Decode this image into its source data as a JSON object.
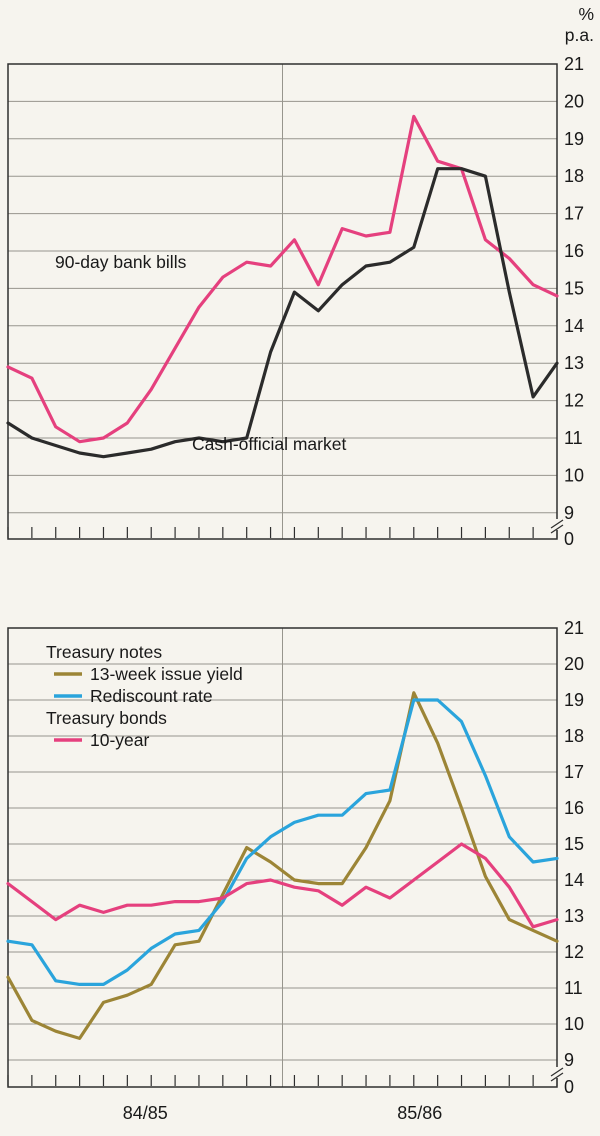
{
  "unit": {
    "line1": "%",
    "line2": "p.a."
  },
  "chart_data": [
    {
      "type": "line",
      "id": "money-market-rates",
      "title": "",
      "ylim": [
        9,
        21
      ],
      "yticks": [
        21,
        20,
        19,
        18,
        17,
        16,
        15,
        14,
        13,
        12,
        11,
        10,
        9
      ],
      "y_break_label": "0",
      "grid": "horizontal",
      "x_span": "two fiscal years, monthly points",
      "series": [
        {
          "name": "90-day bank bills",
          "color": "#e5407e",
          "values": [
            12.9,
            12.6,
            11.3,
            10.9,
            11.0,
            11.4,
            12.3,
            13.4,
            14.5,
            15.3,
            15.7,
            15.6,
            16.3,
            15.1,
            16.6,
            16.4,
            16.5,
            19.6,
            18.4,
            18.2,
            16.3,
            15.8,
            15.1,
            14.8
          ]
        },
        {
          "name": "Cash-official market",
          "color": "#2b2b2b",
          "values": [
            11.4,
            11.0,
            10.8,
            10.6,
            10.5,
            10.6,
            10.7,
            10.9,
            11.0,
            10.9,
            11.0,
            13.3,
            14.9,
            14.4,
            15.1,
            15.6,
            15.7,
            16.1,
            18.2,
            18.2,
            18.0,
            14.9,
            12.1,
            13.0
          ]
        }
      ],
      "annotations": [
        {
          "text": "90-day bank bills",
          "x": 55,
          "y": 213
        },
        {
          "text": "Cash-official market",
          "x": 192,
          "y": 395
        }
      ],
      "x_labels": []
    },
    {
      "type": "line",
      "id": "treasury-rates",
      "title": "",
      "ylim": [
        9,
        21
      ],
      "yticks": [
        21,
        20,
        19,
        18,
        17,
        16,
        15,
        14,
        13,
        12,
        11,
        10,
        9
      ],
      "y_break_label": "0",
      "grid": "horizontal",
      "x_span": "two fiscal years, monthly points",
      "series": [
        {
          "name": "13-week issue yield",
          "color": "#9c8536",
          "values": [
            11.3,
            10.1,
            9.8,
            9.6,
            10.6,
            10.8,
            11.1,
            12.2,
            12.3,
            13.6,
            14.9,
            14.5,
            14.0,
            13.9,
            13.9,
            14.9,
            16.2,
            19.2,
            17.8,
            16.0,
            14.1,
            12.9,
            12.6,
            12.3
          ]
        },
        {
          "name": "Rediscount rate",
          "color": "#2aa4dc",
          "values": [
            12.3,
            12.2,
            11.2,
            11.1,
            11.1,
            11.5,
            12.1,
            12.5,
            12.6,
            13.4,
            14.6,
            15.2,
            15.6,
            15.8,
            15.8,
            16.4,
            16.5,
            19.0,
            19.0,
            18.4,
            16.9,
            15.2,
            14.5,
            14.6
          ]
        },
        {
          "name": "10-year",
          "color": "#e5407e",
          "values": [
            13.9,
            13.4,
            12.9,
            13.3,
            13.1,
            13.3,
            13.3,
            13.4,
            13.4,
            13.5,
            13.9,
            14.0,
            13.8,
            13.7,
            13.3,
            13.8,
            13.5,
            14.0,
            14.5,
            15.0,
            14.6,
            13.8,
            12.7,
            12.9
          ]
        }
      ],
      "legend": [
        {
          "type": "header",
          "text": "Treasury notes"
        },
        {
          "type": "item",
          "text": "13-week issue yield",
          "color": "#9c8536"
        },
        {
          "type": "item",
          "text": "Rediscount rate",
          "color": "#2aa4dc"
        },
        {
          "type": "header",
          "text": "Treasury bonds"
        },
        {
          "type": "item",
          "text": "10-year",
          "color": "#e5407e"
        }
      ],
      "annotations": [],
      "x_labels": [
        {
          "text": "84/85",
          "pos": 0.25
        },
        {
          "text": "85/86",
          "pos": 0.75
        }
      ]
    }
  ]
}
